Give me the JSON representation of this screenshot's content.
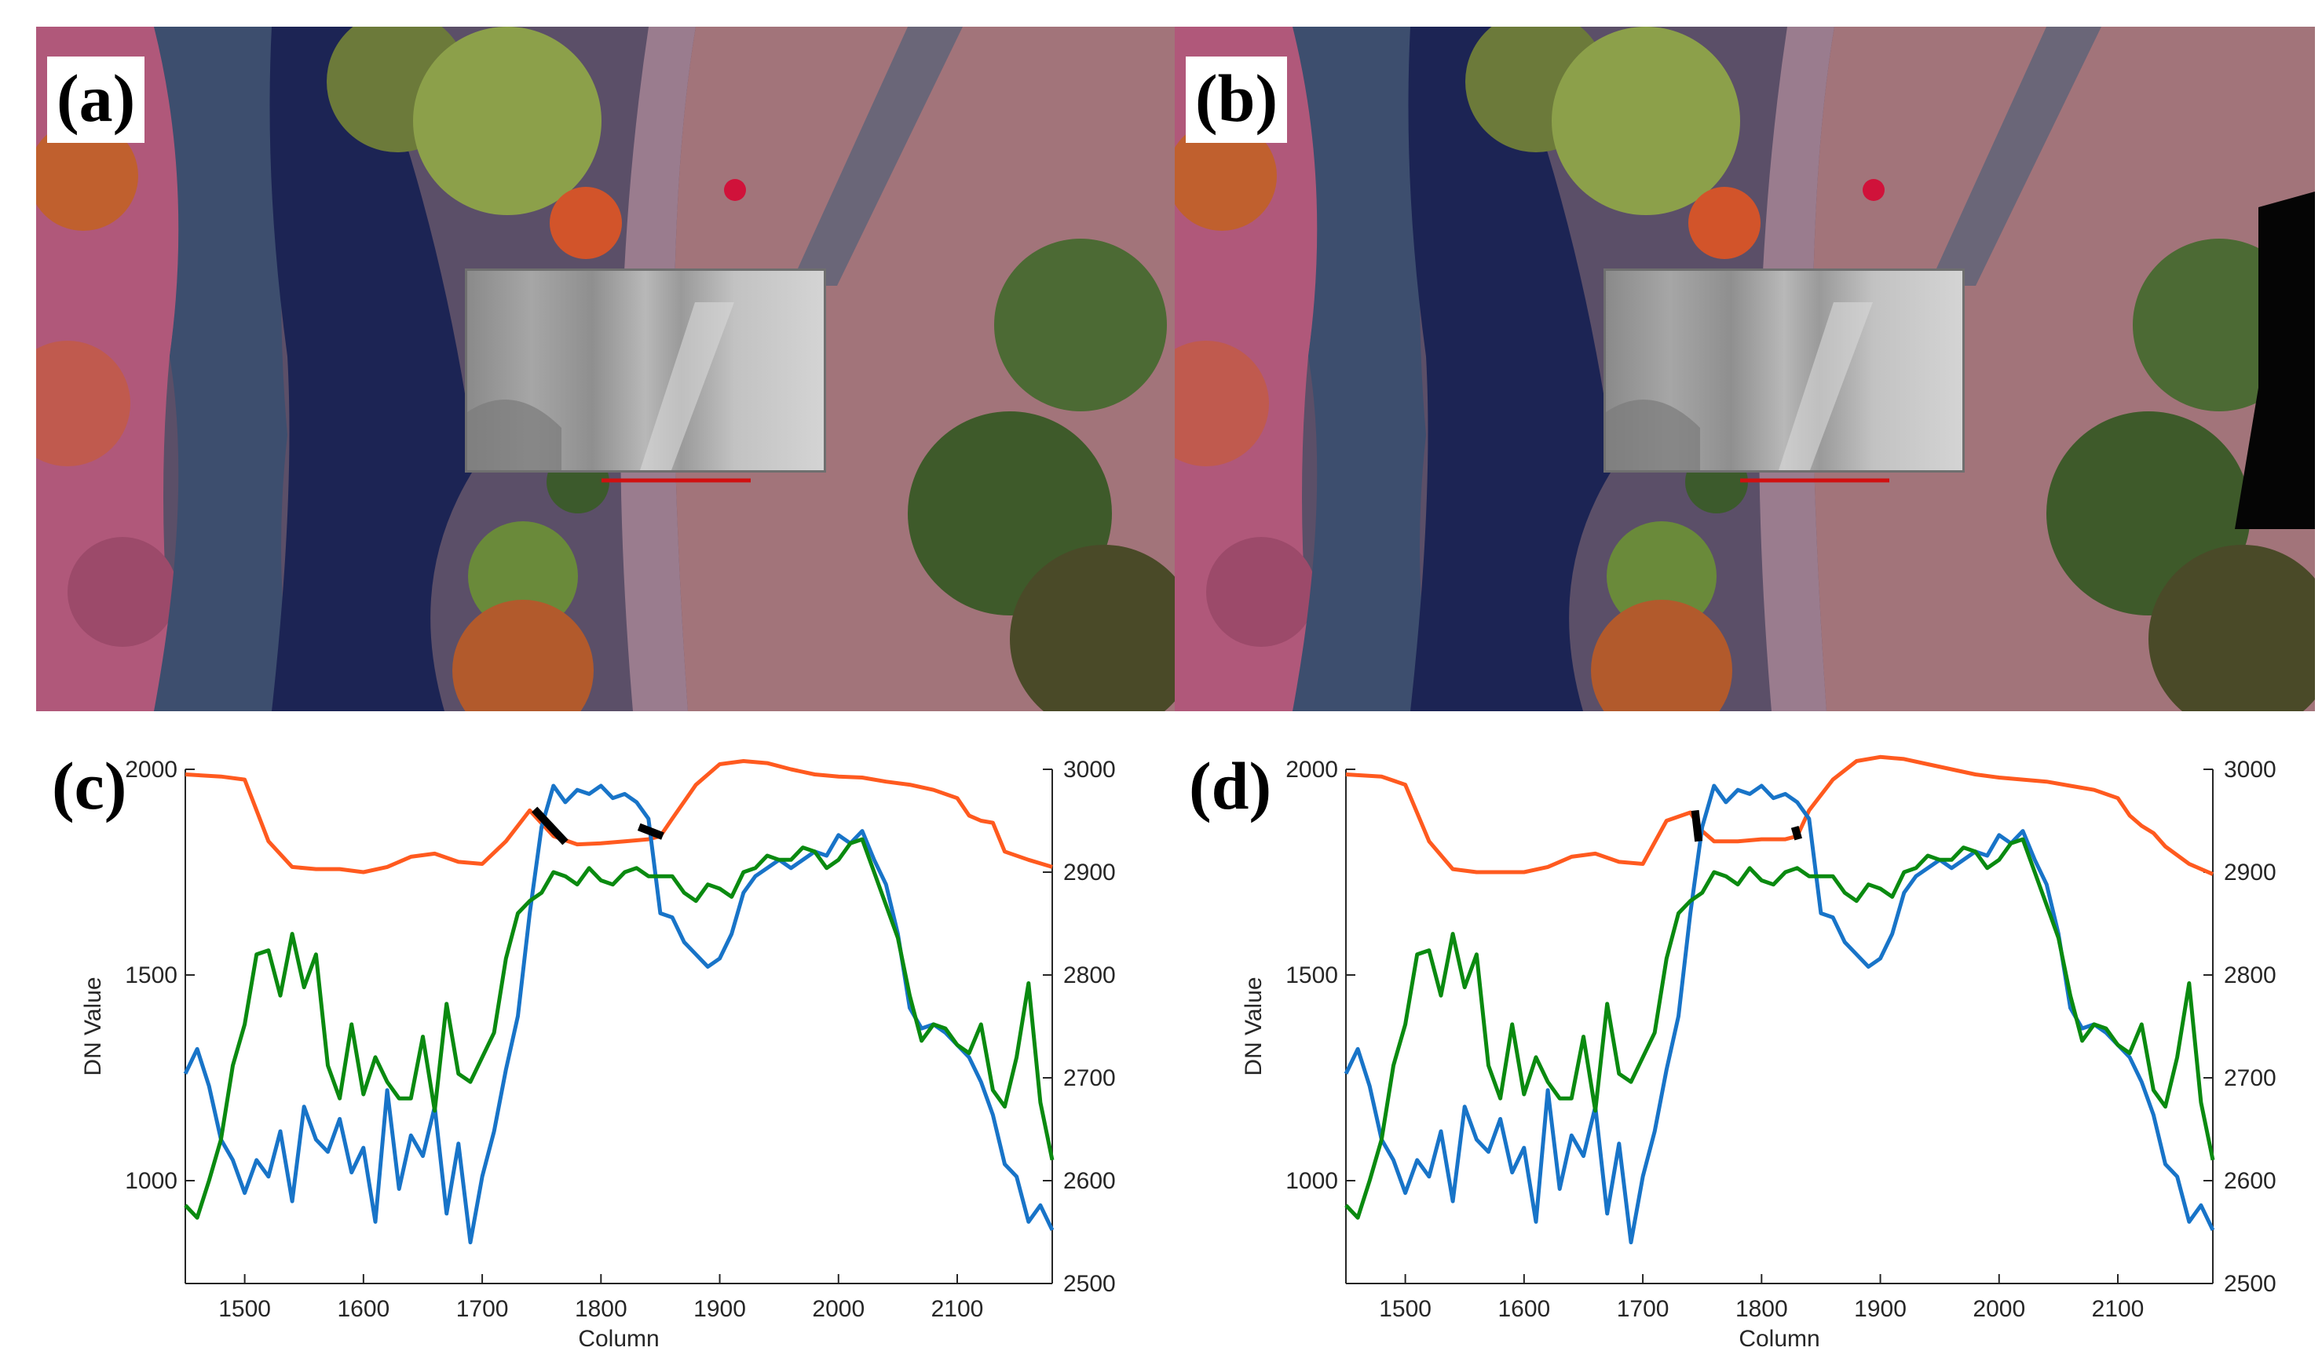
{
  "panels": {
    "a": {
      "label": "(a)"
    },
    "b": {
      "label": "(b)"
    },
    "c": {
      "label": "(c)"
    },
    "d": {
      "label": "(d)"
    }
  },
  "colors": {
    "orange_series": "#ff5a1f",
    "blue_series": "#1874c8",
    "green_series": "#0a8a10",
    "transect_line": "#d01010",
    "marker": "#000000"
  },
  "chart_data": [
    {
      "panel": "(c)",
      "type": "line",
      "xlabel": "Column",
      "ylabel": "DN Value",
      "ylabel_right": "",
      "xlim": [
        1450,
        2180
      ],
      "ylim": [
        750,
        2000
      ],
      "ylim_right": [
        2500,
        3000
      ],
      "xticks": [
        1500,
        1600,
        1700,
        1800,
        1900,
        2000,
        2100
      ],
      "yticks": [
        1000,
        1500,
        2000
      ],
      "yticks_right": [
        2500,
        2600,
        2700,
        2800,
        2900,
        3000
      ],
      "series": [
        {
          "axis": "right",
          "color": "orange",
          "x": [
            1450,
            1480,
            1500,
            1520,
            1540,
            1560,
            1580,
            1600,
            1620,
            1640,
            1660,
            1680,
            1700,
            1720,
            1740,
            1760,
            1780,
            1800,
            1820,
            1840,
            1850,
            1860,
            1880,
            1900,
            1920,
            1940,
            1960,
            1980,
            2000,
            2020,
            2040,
            2060,
            2080,
            2100,
            2110,
            2120,
            2130,
            2140,
            2160,
            2180
          ],
          "y": [
            2995,
            2993,
            2990,
            2930,
            2905,
            2903,
            2903,
            2900,
            2905,
            2915,
            2918,
            2910,
            2908,
            2930,
            2960,
            2935,
            2927,
            2928,
            2930,
            2932,
            2935,
            2952,
            2985,
            3005,
            3008,
            3006,
            3000,
            2995,
            2993,
            2992,
            2988,
            2985,
            2980,
            2972,
            2955,
            2950,
            2948,
            2920,
            2912,
            2905
          ]
        },
        {
          "axis": "left",
          "color": "blue",
          "x": [
            1450,
            1460,
            1470,
            1480,
            1490,
            1500,
            1510,
            1520,
            1530,
            1540,
            1550,
            1560,
            1570,
            1580,
            1590,
            1600,
            1610,
            1620,
            1630,
            1640,
            1650,
            1660,
            1670,
            1680,
            1690,
            1700,
            1710,
            1720,
            1730,
            1740,
            1750,
            1760,
            1770,
            1780,
            1790,
            1800,
            1810,
            1820,
            1830,
            1840,
            1850,
            1860,
            1870,
            1880,
            1890,
            1900,
            1910,
            1920,
            1930,
            1940,
            1950,
            1960,
            1970,
            1980,
            1990,
            2000,
            2010,
            2020,
            2030,
            2040,
            2050,
            2060,
            2070,
            2080,
            2090,
            2100,
            2110,
            2120,
            2130,
            2140,
            2150,
            2160,
            2170,
            2180
          ],
          "y": [
            1260,
            1320,
            1230,
            1100,
            1050,
            970,
            1050,
            1010,
            1120,
            950,
            1180,
            1100,
            1070,
            1150,
            1020,
            1080,
            900,
            1220,
            980,
            1110,
            1060,
            1180,
            920,
            1090,
            850,
            1010,
            1120,
            1270,
            1400,
            1650,
            1860,
            1960,
            1920,
            1950,
            1940,
            1960,
            1930,
            1940,
            1920,
            1880,
            1650,
            1640,
            1580,
            1550,
            1520,
            1540,
            1600,
            1700,
            1740,
            1760,
            1780,
            1760,
            1780,
            1800,
            1790,
            1840,
            1820,
            1850,
            1780,
            1720,
            1600,
            1420,
            1370,
            1380,
            1360,
            1330,
            1300,
            1240,
            1160,
            1040,
            1010,
            900,
            940,
            880
          ]
        },
        {
          "axis": "left",
          "color": "green",
          "x": [
            1450,
            1460,
            1470,
            1480,
            1490,
            1500,
            1510,
            1520,
            1530,
            1540,
            1550,
            1560,
            1570,
            1580,
            1590,
            1600,
            1610,
            1620,
            1630,
            1640,
            1650,
            1660,
            1670,
            1680,
            1690,
            1700,
            1710,
            1720,
            1730,
            1740,
            1750,
            1760,
            1770,
            1780,
            1790,
            1800,
            1810,
            1820,
            1830,
            1840,
            1850,
            1860,
            1870,
            1880,
            1890,
            1900,
            1910,
            1920,
            1930,
            1940,
            1950,
            1960,
            1970,
            1980,
            1990,
            2000,
            2010,
            2020,
            2030,
            2040,
            2050,
            2060,
            2070,
            2080,
            2090,
            2100,
            2110,
            2120,
            2130,
            2140,
            2150,
            2160,
            2170,
            2180
          ],
          "y": [
            940,
            910,
            1000,
            1100,
            1280,
            1380,
            1550,
            1560,
            1450,
            1600,
            1470,
            1550,
            1280,
            1200,
            1380,
            1210,
            1300,
            1240,
            1200,
            1200,
            1350,
            1170,
            1430,
            1260,
            1240,
            1300,
            1360,
            1540,
            1650,
            1680,
            1700,
            1750,
            1740,
            1720,
            1760,
            1730,
            1720,
            1750,
            1760,
            1740,
            1740,
            1740,
            1700,
            1680,
            1720,
            1710,
            1690,
            1750,
            1760,
            1790,
            1780,
            1780,
            1810,
            1800,
            1760,
            1780,
            1820,
            1830,
            1750,
            1670,
            1590,
            1450,
            1340,
            1380,
            1370,
            1330,
            1310,
            1380,
            1220,
            1180,
            1300,
            1480,
            1190,
            1050
          ]
        }
      ],
      "markers": [
        {
          "axis": "right",
          "x": [
            1744,
            1770
          ],
          "y": [
            2961,
            2929
          ]
        },
        {
          "axis": "right",
          "x": [
            1832,
            1852
          ],
          "y": [
            2944,
            2935
          ]
        }
      ]
    },
    {
      "panel": "(d)",
      "type": "line",
      "xlabel": "Column",
      "ylabel": "DN Value",
      "ylabel_right": "",
      "xlim": [
        1450,
        2180
      ],
      "ylim": [
        750,
        2000
      ],
      "ylim_right": [
        2500,
        3000
      ],
      "xticks": [
        1500,
        1600,
        1700,
        1800,
        1900,
        2000,
        2100
      ],
      "yticks": [
        1000,
        1500,
        2000
      ],
      "yticks_right": [
        2500,
        2600,
        2700,
        2800,
        2900,
        3000
      ],
      "series": [
        {
          "axis": "right",
          "color": "orange",
          "x": [
            1450,
            1480,
            1500,
            1520,
            1540,
            1560,
            1580,
            1600,
            1620,
            1640,
            1660,
            1680,
            1700,
            1720,
            1740,
            1750,
            1760,
            1780,
            1800,
            1820,
            1830,
            1840,
            1860,
            1880,
            1900,
            1920,
            1940,
            1960,
            1980,
            2000,
            2020,
            2040,
            2060,
            2080,
            2100,
            2110,
            2120,
            2130,
            2140,
            2160,
            2180
          ],
          "y": [
            2995,
            2993,
            2985,
            2930,
            2903,
            2900,
            2900,
            2900,
            2905,
            2915,
            2918,
            2910,
            2908,
            2950,
            2958,
            2940,
            2930,
            2930,
            2932,
            2932,
            2935,
            2960,
            2990,
            3008,
            3012,
            3010,
            3005,
            3000,
            2995,
            2992,
            2990,
            2988,
            2984,
            2980,
            2972,
            2955,
            2945,
            2938,
            2925,
            2908,
            2898
          ]
        },
        {
          "axis": "left",
          "color": "blue",
          "x": [
            1450,
            1460,
            1470,
            1480,
            1490,
            1500,
            1510,
            1520,
            1530,
            1540,
            1550,
            1560,
            1570,
            1580,
            1590,
            1600,
            1610,
            1620,
            1630,
            1640,
            1650,
            1660,
            1670,
            1680,
            1690,
            1700,
            1710,
            1720,
            1730,
            1740,
            1750,
            1760,
            1770,
            1780,
            1790,
            1800,
            1810,
            1820,
            1830,
            1840,
            1850,
            1860,
            1870,
            1880,
            1890,
            1900,
            1910,
            1920,
            1930,
            1940,
            1950,
            1960,
            1970,
            1980,
            1990,
            2000,
            2010,
            2020,
            2030,
            2040,
            2050,
            2060,
            2070,
            2080,
            2090,
            2100,
            2110,
            2120,
            2130,
            2140,
            2150,
            2160,
            2170,
            2180
          ],
          "y": [
            1260,
            1320,
            1230,
            1100,
            1050,
            970,
            1050,
            1010,
            1120,
            950,
            1180,
            1100,
            1070,
            1150,
            1020,
            1080,
            900,
            1220,
            980,
            1110,
            1060,
            1180,
            920,
            1090,
            850,
            1010,
            1120,
            1270,
            1400,
            1650,
            1860,
            1960,
            1920,
            1950,
            1940,
            1960,
            1930,
            1940,
            1920,
            1880,
            1650,
            1640,
            1580,
            1550,
            1520,
            1540,
            1600,
            1700,
            1740,
            1760,
            1780,
            1760,
            1780,
            1800,
            1790,
            1840,
            1820,
            1850,
            1780,
            1720,
            1600,
            1420,
            1370,
            1380,
            1360,
            1330,
            1300,
            1240,
            1160,
            1040,
            1010,
            900,
            940,
            880
          ]
        },
        {
          "axis": "left",
          "color": "green",
          "x": [
            1450,
            1460,
            1470,
            1480,
            1490,
            1500,
            1510,
            1520,
            1530,
            1540,
            1550,
            1560,
            1570,
            1580,
            1590,
            1600,
            1610,
            1620,
            1630,
            1640,
            1650,
            1660,
            1670,
            1680,
            1690,
            1700,
            1710,
            1720,
            1730,
            1740,
            1750,
            1760,
            1770,
            1780,
            1790,
            1800,
            1810,
            1820,
            1830,
            1840,
            1850,
            1860,
            1870,
            1880,
            1890,
            1900,
            1910,
            1920,
            1930,
            1940,
            1950,
            1960,
            1970,
            1980,
            1990,
            2000,
            2010,
            2020,
            2030,
            2040,
            2050,
            2060,
            2070,
            2080,
            2090,
            2100,
            2110,
            2120,
            2130,
            2140,
            2150,
            2160,
            2170,
            2180
          ],
          "y": [
            940,
            910,
            1000,
            1100,
            1280,
            1380,
            1550,
            1560,
            1450,
            1600,
            1470,
            1550,
            1280,
            1200,
            1380,
            1210,
            1300,
            1240,
            1200,
            1200,
            1350,
            1170,
            1430,
            1260,
            1240,
            1300,
            1360,
            1540,
            1650,
            1680,
            1700,
            1750,
            1740,
            1720,
            1760,
            1730,
            1720,
            1750,
            1760,
            1740,
            1740,
            1740,
            1700,
            1680,
            1720,
            1710,
            1690,
            1750,
            1760,
            1790,
            1780,
            1780,
            1810,
            1800,
            1760,
            1780,
            1820,
            1830,
            1750,
            1670,
            1590,
            1450,
            1340,
            1380,
            1370,
            1330,
            1310,
            1380,
            1220,
            1180,
            1300,
            1480,
            1190,
            1050
          ]
        }
      ],
      "markers": [
        {
          "axis": "right",
          "x": [
            1744,
            1747
          ],
          "y": [
            2960,
            2930
          ]
        },
        {
          "axis": "right",
          "x": [
            1828,
            1831
          ],
          "y": [
            2944,
            2932
          ]
        }
      ]
    }
  ]
}
